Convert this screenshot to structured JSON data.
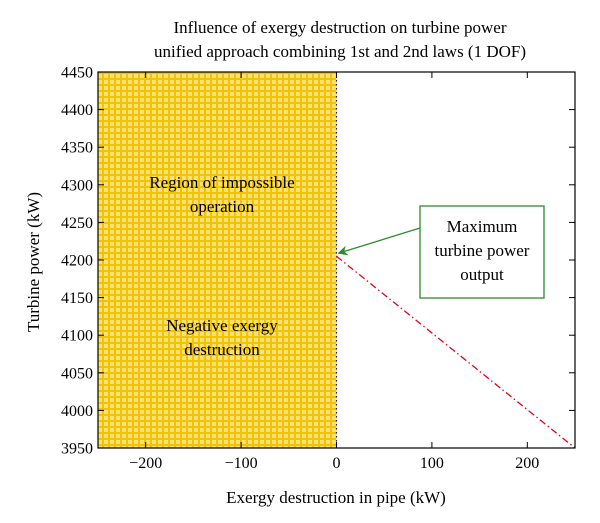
{
  "chart_data": {
    "type": "line",
    "title": "Influence of exergy destruction on turbine power",
    "subtitle": "unified approach combining 1st and 2nd laws (1 DOF)",
    "xlabel": "Exergy destruction in pipe (kW)",
    "ylabel": "Turbine power (kW)",
    "xlim": [
      -250,
      250
    ],
    "ylim": [
      3950,
      4450
    ],
    "xticks": [
      -200,
      -100,
      0,
      100,
      200
    ],
    "xtick_labels": [
      "−200",
      "−100",
      "0",
      "100",
      "200"
    ],
    "yticks": [
      3950,
      4000,
      4050,
      4100,
      4150,
      4200,
      4250,
      4300,
      4350,
      4400,
      4450
    ],
    "ytick_labels": [
      "3950",
      "4000",
      "4050",
      "4100",
      "4150",
      "4200",
      "4250",
      "4300",
      "4350",
      "4400",
      "4450"
    ],
    "grid": false,
    "series": [
      {
        "x": [
          0,
          250
        ],
        "y": [
          4205,
          3950
        ],
        "color": "#e8001c",
        "style": "dash-dot"
      }
    ],
    "shaded_region": {
      "x_range": [
        -250,
        0
      ],
      "color": "#f5d020",
      "pattern": "grid",
      "boundary_style": "dotted",
      "labels": [
        {
          "lines": [
            "Region of impossible",
            "operation"
          ]
        },
        {
          "lines": [
            "Negative exergy",
            "destruction"
          ]
        }
      ]
    },
    "annotation": {
      "lines": [
        "Maximum",
        "turbine power",
        "output"
      ],
      "box_color": "#2e8b2e",
      "arrow_target": {
        "x": 0,
        "y": 4205
      }
    }
  }
}
